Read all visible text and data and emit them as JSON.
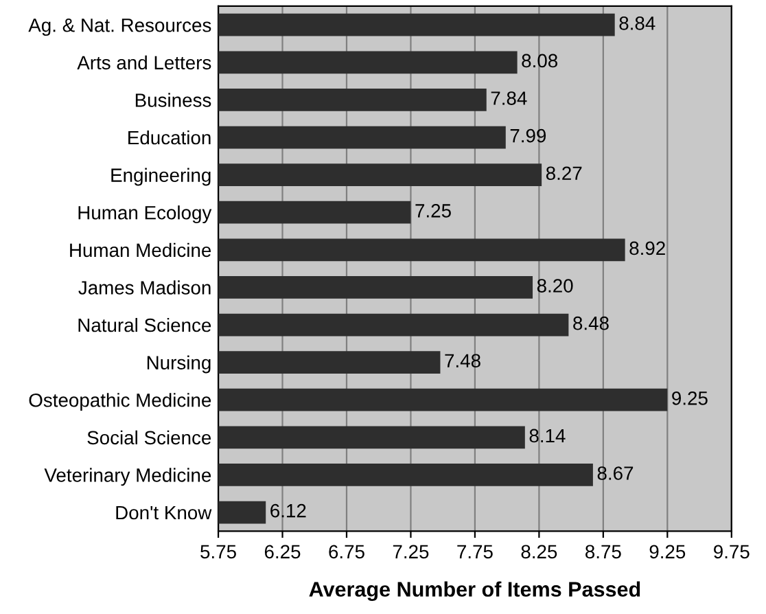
{
  "chart_data": {
    "type": "bar",
    "orientation": "horizontal",
    "xlabel": "Average Number of Items Passed",
    "categories": [
      "Ag. & Nat. Resources",
      "Arts and Letters",
      "Business",
      "Education",
      "Engineering",
      "Human Ecology",
      "Human Medicine",
      "James Madison",
      "Natural Science",
      "Nursing",
      "Osteopathic Medicine",
      "Social Science",
      "Veterinary Medicine",
      "Don't Know"
    ],
    "values": [
      8.84,
      8.08,
      7.84,
      7.99,
      8.27,
      7.25,
      8.92,
      8.2,
      8.48,
      7.48,
      9.25,
      8.14,
      8.67,
      6.12
    ],
    "value_labels": [
      "8.84",
      "8.08",
      "7.84",
      "7.99",
      "8.27",
      "7.25",
      "8.92",
      "8.20",
      "8.48",
      "7.48",
      "9.25",
      "8.14",
      "8.67",
      "6.12"
    ],
    "color": "#2e2e2e",
    "xlim": [
      5.75,
      9.75
    ],
    "xticks": [
      5.75,
      6.25,
      6.75,
      7.25,
      7.75,
      8.25,
      8.75,
      9.25,
      9.75
    ],
    "grid": "x"
  }
}
